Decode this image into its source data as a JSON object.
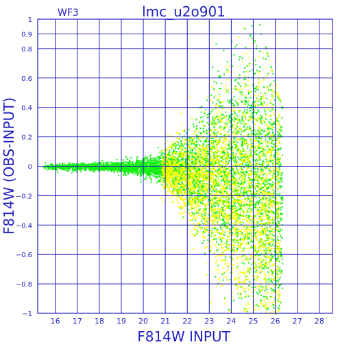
{
  "chart_data": {
    "type": "scatter",
    "title": "lmc_u2o901",
    "corner_label": "WF3",
    "xlabel": "F814W  INPUT",
    "ylabel": "F814W (OBS-INPUT)",
    "xlim": [
      15.2,
      28.6
    ],
    "ylim": [
      -1,
      1
    ],
    "x_ticks": [
      16,
      17,
      18,
      19,
      20,
      21,
      22,
      23,
      24,
      25,
      26,
      27,
      28
    ],
    "y_ticks": [
      1,
      0.9,
      0.8,
      0.6,
      0.4,
      0.2,
      0,
      -0.2,
      -0.4,
      -0.6,
      -0.8,
      -1
    ],
    "y_tick_labels": [
      "1",
      "0.9",
      "0.8",
      "0.6",
      "0.4",
      "0.2",
      "0",
      "−0.2",
      "−0.4",
      "−0.6",
      "−0.8",
      "−1"
    ],
    "grid": true,
    "colors": {
      "axis": "#1f1fbf",
      "grid": "#1f1fbf",
      "series_green": "#11ee11",
      "series_yellow": "#ffff00"
    },
    "series": [
      {
        "color": "#11ee11",
        "description_points": [
          {
            "mag": 15.5,
            "offset_mean": 0.0,
            "scatter": 0.01
          },
          {
            "mag": 17.0,
            "offset_mean": 0.0,
            "scatter": 0.012
          },
          {
            "mag": 18.5,
            "offset_mean": 0.0,
            "scatter": 0.015
          },
          {
            "mag": 20.0,
            "offset_mean": -0.005,
            "scatter": 0.03
          },
          {
            "mag": 21.0,
            "offset_mean": -0.01,
            "scatter": 0.05
          },
          {
            "mag": 22.0,
            "offset_mean": -0.03,
            "scatter": 0.12
          },
          {
            "mag": 23.0,
            "offset_mean": -0.05,
            "scatter": 0.22
          },
          {
            "mag": 24.0,
            "offset_mean": -0.05,
            "scatter": 0.32
          },
          {
            "mag": 25.0,
            "offset_mean": -0.05,
            "scatter": 0.42
          },
          {
            "mag": 26.0,
            "offset_mean": -0.3,
            "scatter": 0.45
          }
        ]
      },
      {
        "color": "#ffff00",
        "description_points": [
          {
            "mag": 21.0,
            "offset_mean": -0.03,
            "scatter": 0.08
          },
          {
            "mag": 22.0,
            "offset_mean": -0.08,
            "scatter": 0.15
          },
          {
            "mag": 22.8,
            "offset_mean": -0.12,
            "scatter": 0.2
          },
          {
            "mag": 23.5,
            "offset_mean": -0.15,
            "scatter": 0.3
          },
          {
            "mag": 24.5,
            "offset_mean": -0.2,
            "scatter": 0.4
          },
          {
            "mag": 25.5,
            "offset_mean": -0.3,
            "scatter": 0.45
          }
        ]
      }
    ]
  }
}
